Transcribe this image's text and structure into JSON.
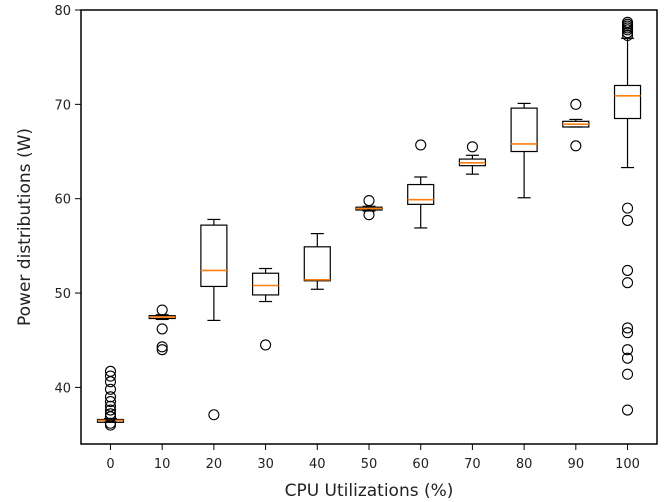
{
  "chart_data": {
    "type": "boxplot",
    "title": "",
    "xlabel": "CPU Utilizations (%)",
    "ylabel": "Power distributions (W)",
    "categories": [
      "0",
      "10",
      "20",
      "30",
      "40",
      "50",
      "60",
      "70",
      "80",
      "90",
      "100"
    ],
    "ylim": [
      34,
      80
    ],
    "yticks": [
      40,
      50,
      60,
      70,
      80
    ],
    "grid": false,
    "colors": {
      "box": "#000000",
      "median": "#ff7f0e"
    },
    "boxes": [
      {
        "category": "0",
        "whislo": 36.3,
        "q1": 36.3,
        "med": 36.5,
        "q3": 36.6,
        "whishi": 36.7,
        "fliers": [
          36.0,
          36.2,
          36.9,
          37.2,
          37.6,
          38.0,
          38.5,
          39.0,
          39.8,
          40.6,
          41.2,
          41.7
        ]
      },
      {
        "category": "10",
        "whislo": 47.2,
        "q1": 47.3,
        "med": 47.45,
        "q3": 47.6,
        "whishi": 47.7,
        "fliers": [
          44.0,
          44.3,
          46.2,
          48.2
        ]
      },
      {
        "category": "20",
        "whislo": 47.1,
        "q1": 50.7,
        "med": 52.4,
        "q3": 57.2,
        "whishi": 57.8,
        "fliers": [
          37.1
        ]
      },
      {
        "category": "30",
        "whislo": 49.1,
        "q1": 49.8,
        "med": 50.8,
        "q3": 52.1,
        "whishi": 52.6,
        "fliers": [
          44.5
        ]
      },
      {
        "category": "40",
        "whislo": 50.4,
        "q1": 51.3,
        "med": 51.4,
        "q3": 54.9,
        "whishi": 56.3,
        "fliers": []
      },
      {
        "category": "50",
        "whislo": 58.7,
        "q1": 58.8,
        "med": 58.95,
        "q3": 59.1,
        "whishi": 59.2,
        "fliers": [
          58.3,
          59.8
        ]
      },
      {
        "category": "60",
        "whislo": 56.9,
        "q1": 59.4,
        "med": 59.9,
        "q3": 61.5,
        "whishi": 62.3,
        "fliers": [
          65.7
        ]
      },
      {
        "category": "70",
        "whislo": 62.6,
        "q1": 63.5,
        "med": 63.8,
        "q3": 64.2,
        "whishi": 64.6,
        "fliers": [
          65.5
        ]
      },
      {
        "category": "80",
        "whislo": 60.1,
        "q1": 65.0,
        "med": 65.8,
        "q3": 69.6,
        "whishi": 70.1,
        "fliers": []
      },
      {
        "category": "90",
        "whislo": 67.6,
        "q1": 67.6,
        "med": 67.9,
        "q3": 68.2,
        "whishi": 68.4,
        "fliers": [
          65.6,
          70.0
        ]
      },
      {
        "category": "100",
        "whislo": 63.3,
        "q1": 68.5,
        "med": 70.9,
        "q3": 72.0,
        "whishi": 77.0,
        "fliers": [
          37.6,
          41.4,
          43.1,
          44.0,
          45.8,
          46.3,
          51.1,
          52.4,
          57.7,
          59.0,
          77.3,
          77.6,
          77.9,
          78.1,
          78.3,
          78.5,
          78.7
        ]
      }
    ]
  }
}
